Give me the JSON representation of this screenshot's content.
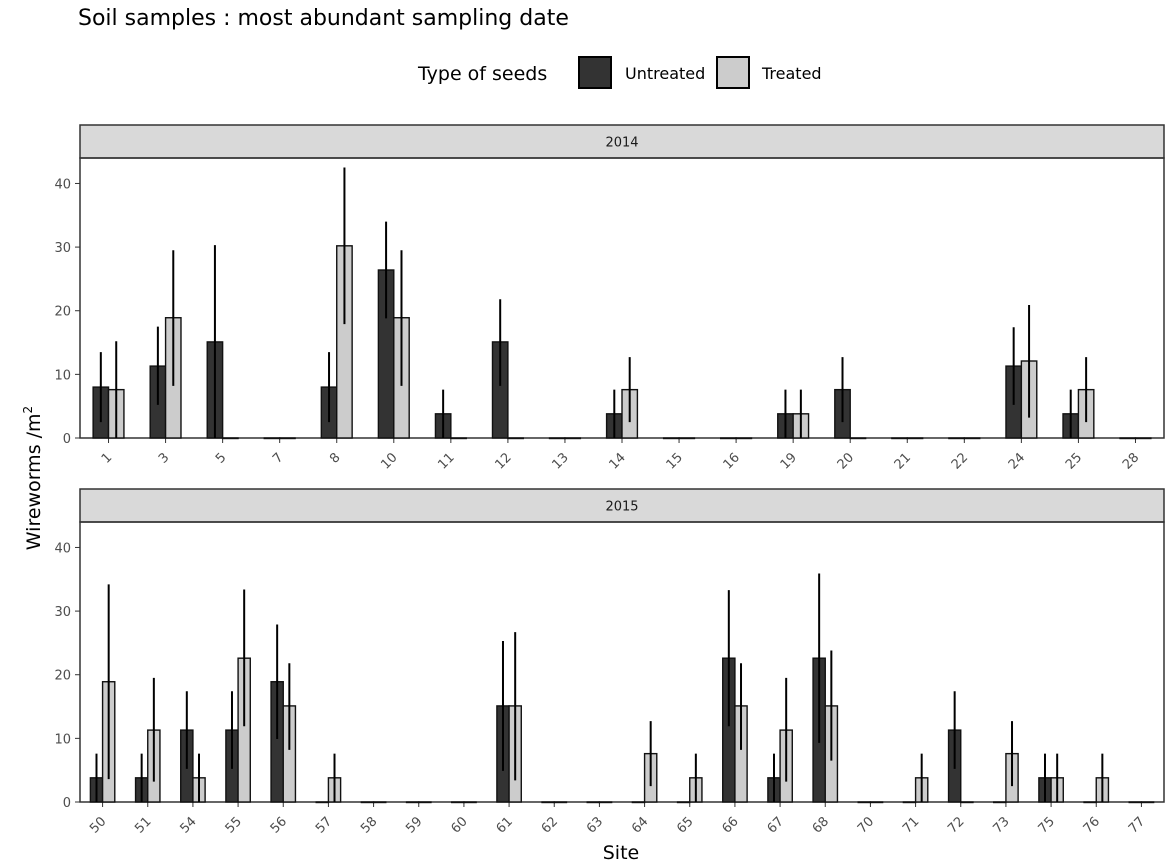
{
  "chart_data": {
    "type": "bar",
    "title": "Soil samples : most abundant sampling date",
    "xlabel": "Site",
    "ylabel": "Wireworms /m",
    "ylabel_superscript": "2",
    "legend": {
      "title": "Type of seeds",
      "placement": "top-center",
      "entries": [
        {
          "name": "Untreated",
          "color": "#333333"
        },
        {
          "name": "Treated",
          "color": "#cccccc"
        }
      ]
    },
    "ylim": [
      0,
      44
    ],
    "yticks": [
      0,
      10,
      20,
      30,
      40
    ],
    "grid": false,
    "panels": [
      {
        "label": "2014",
        "categories": [
          "1",
          "3",
          "5",
          "7",
          "8",
          "10",
          "11",
          "12",
          "13",
          "14",
          "15",
          "16",
          "19",
          "20",
          "21",
          "22",
          "24",
          "25",
          "28"
        ],
        "series": [
          {
            "name": "Untreated",
            "values": [
              8.0,
              11.3,
              15.1,
              0,
              8.0,
              26.4,
              3.8,
              15.1,
              0,
              3.8,
              0,
              0,
              3.8,
              7.6,
              0,
              0,
              11.3,
              3.8,
              0
            ],
            "err_low": [
              2.5,
              5.2,
              0,
              0,
              2.5,
              18.8,
              0,
              8.2,
              0,
              0,
              0,
              0,
              0,
              2.5,
              0,
              0,
              5.2,
              0,
              0
            ],
            "err_high": [
              13.5,
              17.5,
              30.3,
              0,
              13.5,
              34.0,
              7.6,
              21.8,
              0,
              7.6,
              0,
              0,
              7.6,
              12.7,
              0,
              0,
              17.4,
              7.6,
              0
            ]
          },
          {
            "name": "Treated",
            "values": [
              7.6,
              18.9,
              0,
              0,
              30.2,
              18.9,
              0,
              0,
              0,
              7.6,
              0,
              0,
              3.8,
              0,
              0,
              0,
              12.1,
              7.6,
              0
            ],
            "err_low": [
              0,
              8.2,
              0,
              0,
              17.9,
              8.2,
              0,
              0,
              0,
              2.5,
              0,
              0,
              0,
              0,
              0,
              0,
              3.2,
              2.5,
              0
            ],
            "err_high": [
              15.2,
              29.5,
              0,
              0,
              42.5,
              29.5,
              0,
              0,
              0,
              12.7,
              0,
              0,
              7.6,
              0,
              0,
              0,
              20.9,
              12.7,
              0
            ]
          }
        ]
      },
      {
        "label": "2015",
        "categories": [
          "50",
          "51",
          "54",
          "55",
          "56",
          "57",
          "58",
          "59",
          "60",
          "61",
          "62",
          "63",
          "64",
          "65",
          "66",
          "67",
          "68",
          "70",
          "71",
          "72",
          "73",
          "75",
          "76",
          "77"
        ],
        "series": [
          {
            "name": "Untreated",
            "values": [
              3.8,
              3.8,
              11.3,
              11.3,
              18.9,
              0,
              0,
              0,
              0,
              15.1,
              0,
              0,
              0,
              0,
              22.6,
              3.8,
              22.6,
              0,
              0,
              11.3,
              0,
              3.8,
              0,
              0
            ],
            "err_low": [
              0,
              0,
              5.2,
              5.2,
              9.9,
              0,
              0,
              0,
              0,
              4.9,
              0,
              0,
              0,
              0,
              11.9,
              0,
              9.3,
              0,
              0,
              5.2,
              0,
              0,
              0,
              0
            ],
            "err_high": [
              7.6,
              7.6,
              17.4,
              17.4,
              27.9,
              0,
              0,
              0,
              0,
              25.3,
              0,
              0,
              0,
              0,
              33.3,
              7.6,
              35.9,
              0,
              0,
              17.4,
              0,
              7.6,
              0,
              0
            ]
          },
          {
            "name": "Treated",
            "values": [
              18.9,
              11.3,
              3.8,
              22.6,
              15.1,
              3.8,
              0,
              0,
              0,
              15.1,
              0,
              0,
              7.6,
              3.8,
              15.1,
              11.3,
              15.1,
              0,
              3.8,
              0,
              7.6,
              3.8,
              3.8,
              0
            ],
            "err_low": [
              3.6,
              3.2,
              0,
              11.9,
              8.2,
              0,
              0,
              0,
              0,
              3.4,
              0,
              0,
              2.5,
              0,
              8.2,
              3.2,
              6.5,
              0,
              0,
              0,
              2.5,
              0,
              0,
              0
            ],
            "err_high": [
              34.2,
              19.5,
              7.6,
              33.4,
              21.8,
              7.6,
              0,
              0,
              0,
              26.7,
              0,
              0,
              12.7,
              7.6,
              21.8,
              19.5,
              23.8,
              0,
              7.6,
              0,
              12.7,
              7.6,
              7.6,
              0
            ]
          }
        ]
      }
    ]
  }
}
